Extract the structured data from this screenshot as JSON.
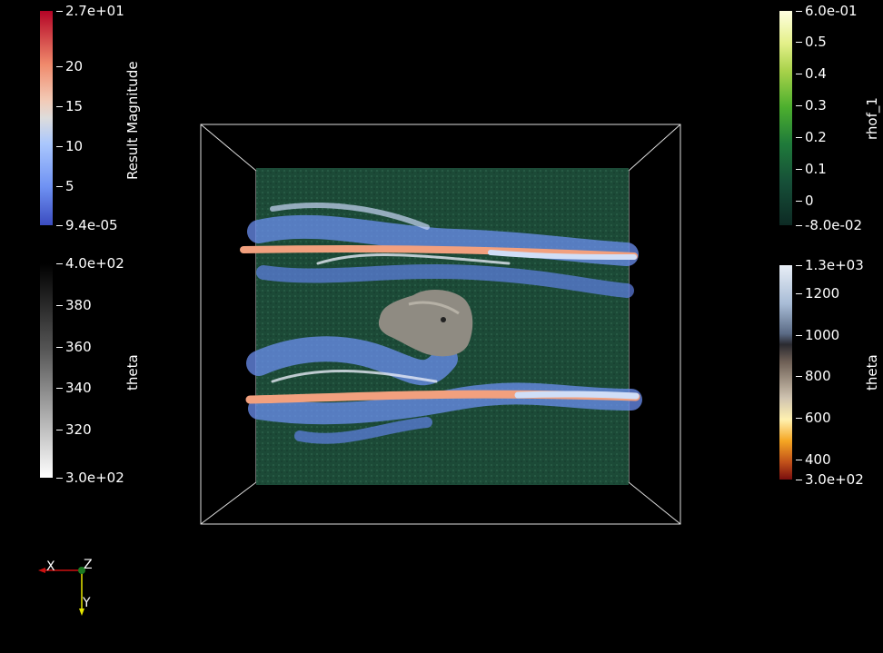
{
  "legends": {
    "result_magnitude": {
      "title": "Result Magnitude",
      "ticks": [
        "2.7e+01",
        "20",
        "15",
        "10",
        "5",
        "9.4e-05"
      ]
    },
    "theta_gray": {
      "title": "theta",
      "ticks": [
        "4.0e+02",
        "380",
        "360",
        "340",
        "320",
        "3.0e+02"
      ]
    },
    "rhof": {
      "title": "rhof_1",
      "ticks": [
        "6.0e-01",
        "0.5",
        "0.4",
        "0.3",
        "0.2",
        "0.1",
        "0",
        "-8.0e-02"
      ]
    },
    "theta_heat": {
      "title": "theta",
      "ticks": [
        "1.3e+03",
        "1200",
        "1000",
        "800",
        "600",
        "400",
        "3.0e+02"
      ]
    }
  },
  "axes": {
    "x": "X",
    "y": "Y",
    "z": "Z"
  },
  "colors": {
    "background": "#000000",
    "slab": "#1c4a37",
    "streamline_blue": "#6b8ff0",
    "streamline_salmon": "#f2a07e",
    "isosurface": "#8f8b82",
    "box_outline": "#ffffff"
  }
}
